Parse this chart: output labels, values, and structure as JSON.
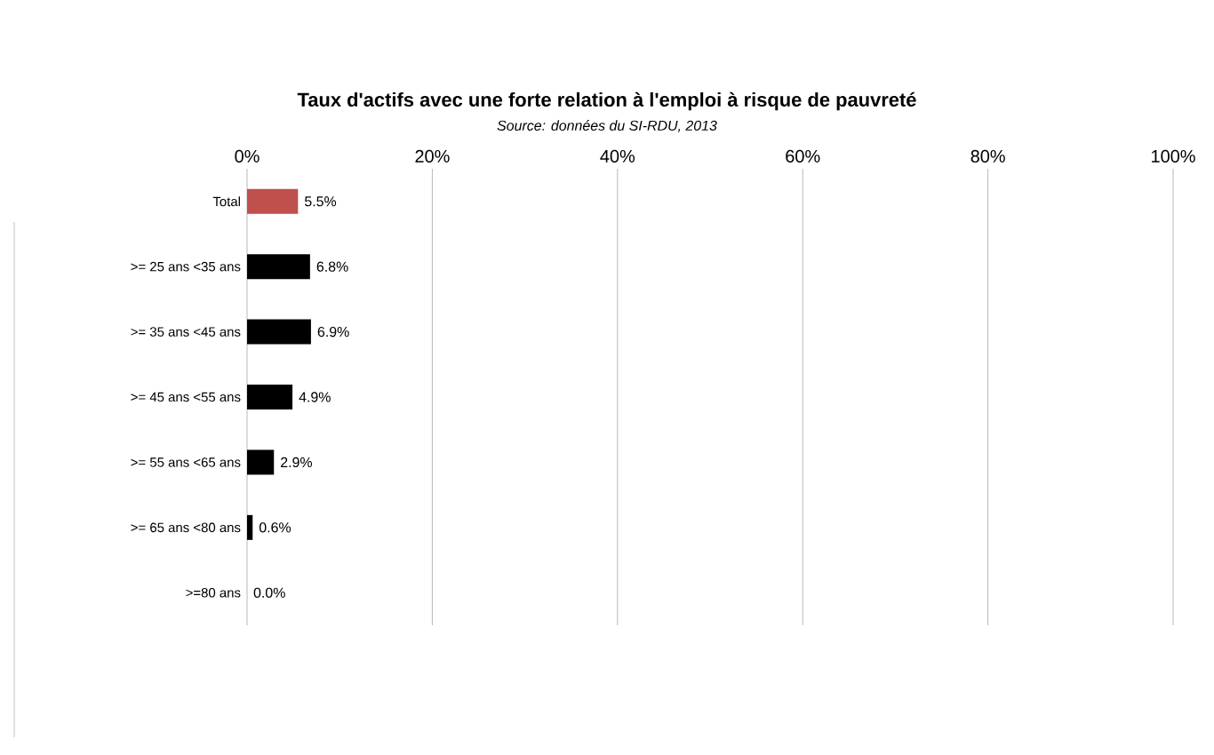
{
  "chart_data": {
    "type": "bar",
    "orientation": "horizontal",
    "title": "Taux d'actifs avec une forte relation à l'emploi  à risque de pauvreté",
    "subtitle": "Source: données du SI-RDU, 2013",
    "categories": [
      "Total",
      ">= 25 ans <35 ans",
      ">= 35 ans <45 ans",
      ">= 45 ans <55 ans",
      ">= 55 ans <65 ans",
      ">= 65 ans <80 ans",
      ">=80 ans"
    ],
    "values": [
      5.5,
      6.8,
      6.9,
      4.9,
      2.9,
      0.6,
      0.0
    ],
    "value_labels": [
      "5.5%",
      "6.8%",
      "6.9%",
      "4.9%",
      "2.9%",
      "0.6%",
      "0.0%"
    ],
    "colors": [
      "#c0504d",
      "#000000",
      "#000000",
      "#000000",
      "#000000",
      "#000000",
      "#000000"
    ],
    "xlim": [
      0,
      100
    ],
    "xticks": [
      {
        "value": 0,
        "label": "0%"
      },
      {
        "value": 20,
        "label": "20%"
      },
      {
        "value": 40,
        "label": "40%"
      },
      {
        "value": 60,
        "label": "60%"
      },
      {
        "value": 80,
        "label": "80%"
      },
      {
        "value": 100,
        "label": "100%"
      }
    ],
    "grid": "x"
  }
}
